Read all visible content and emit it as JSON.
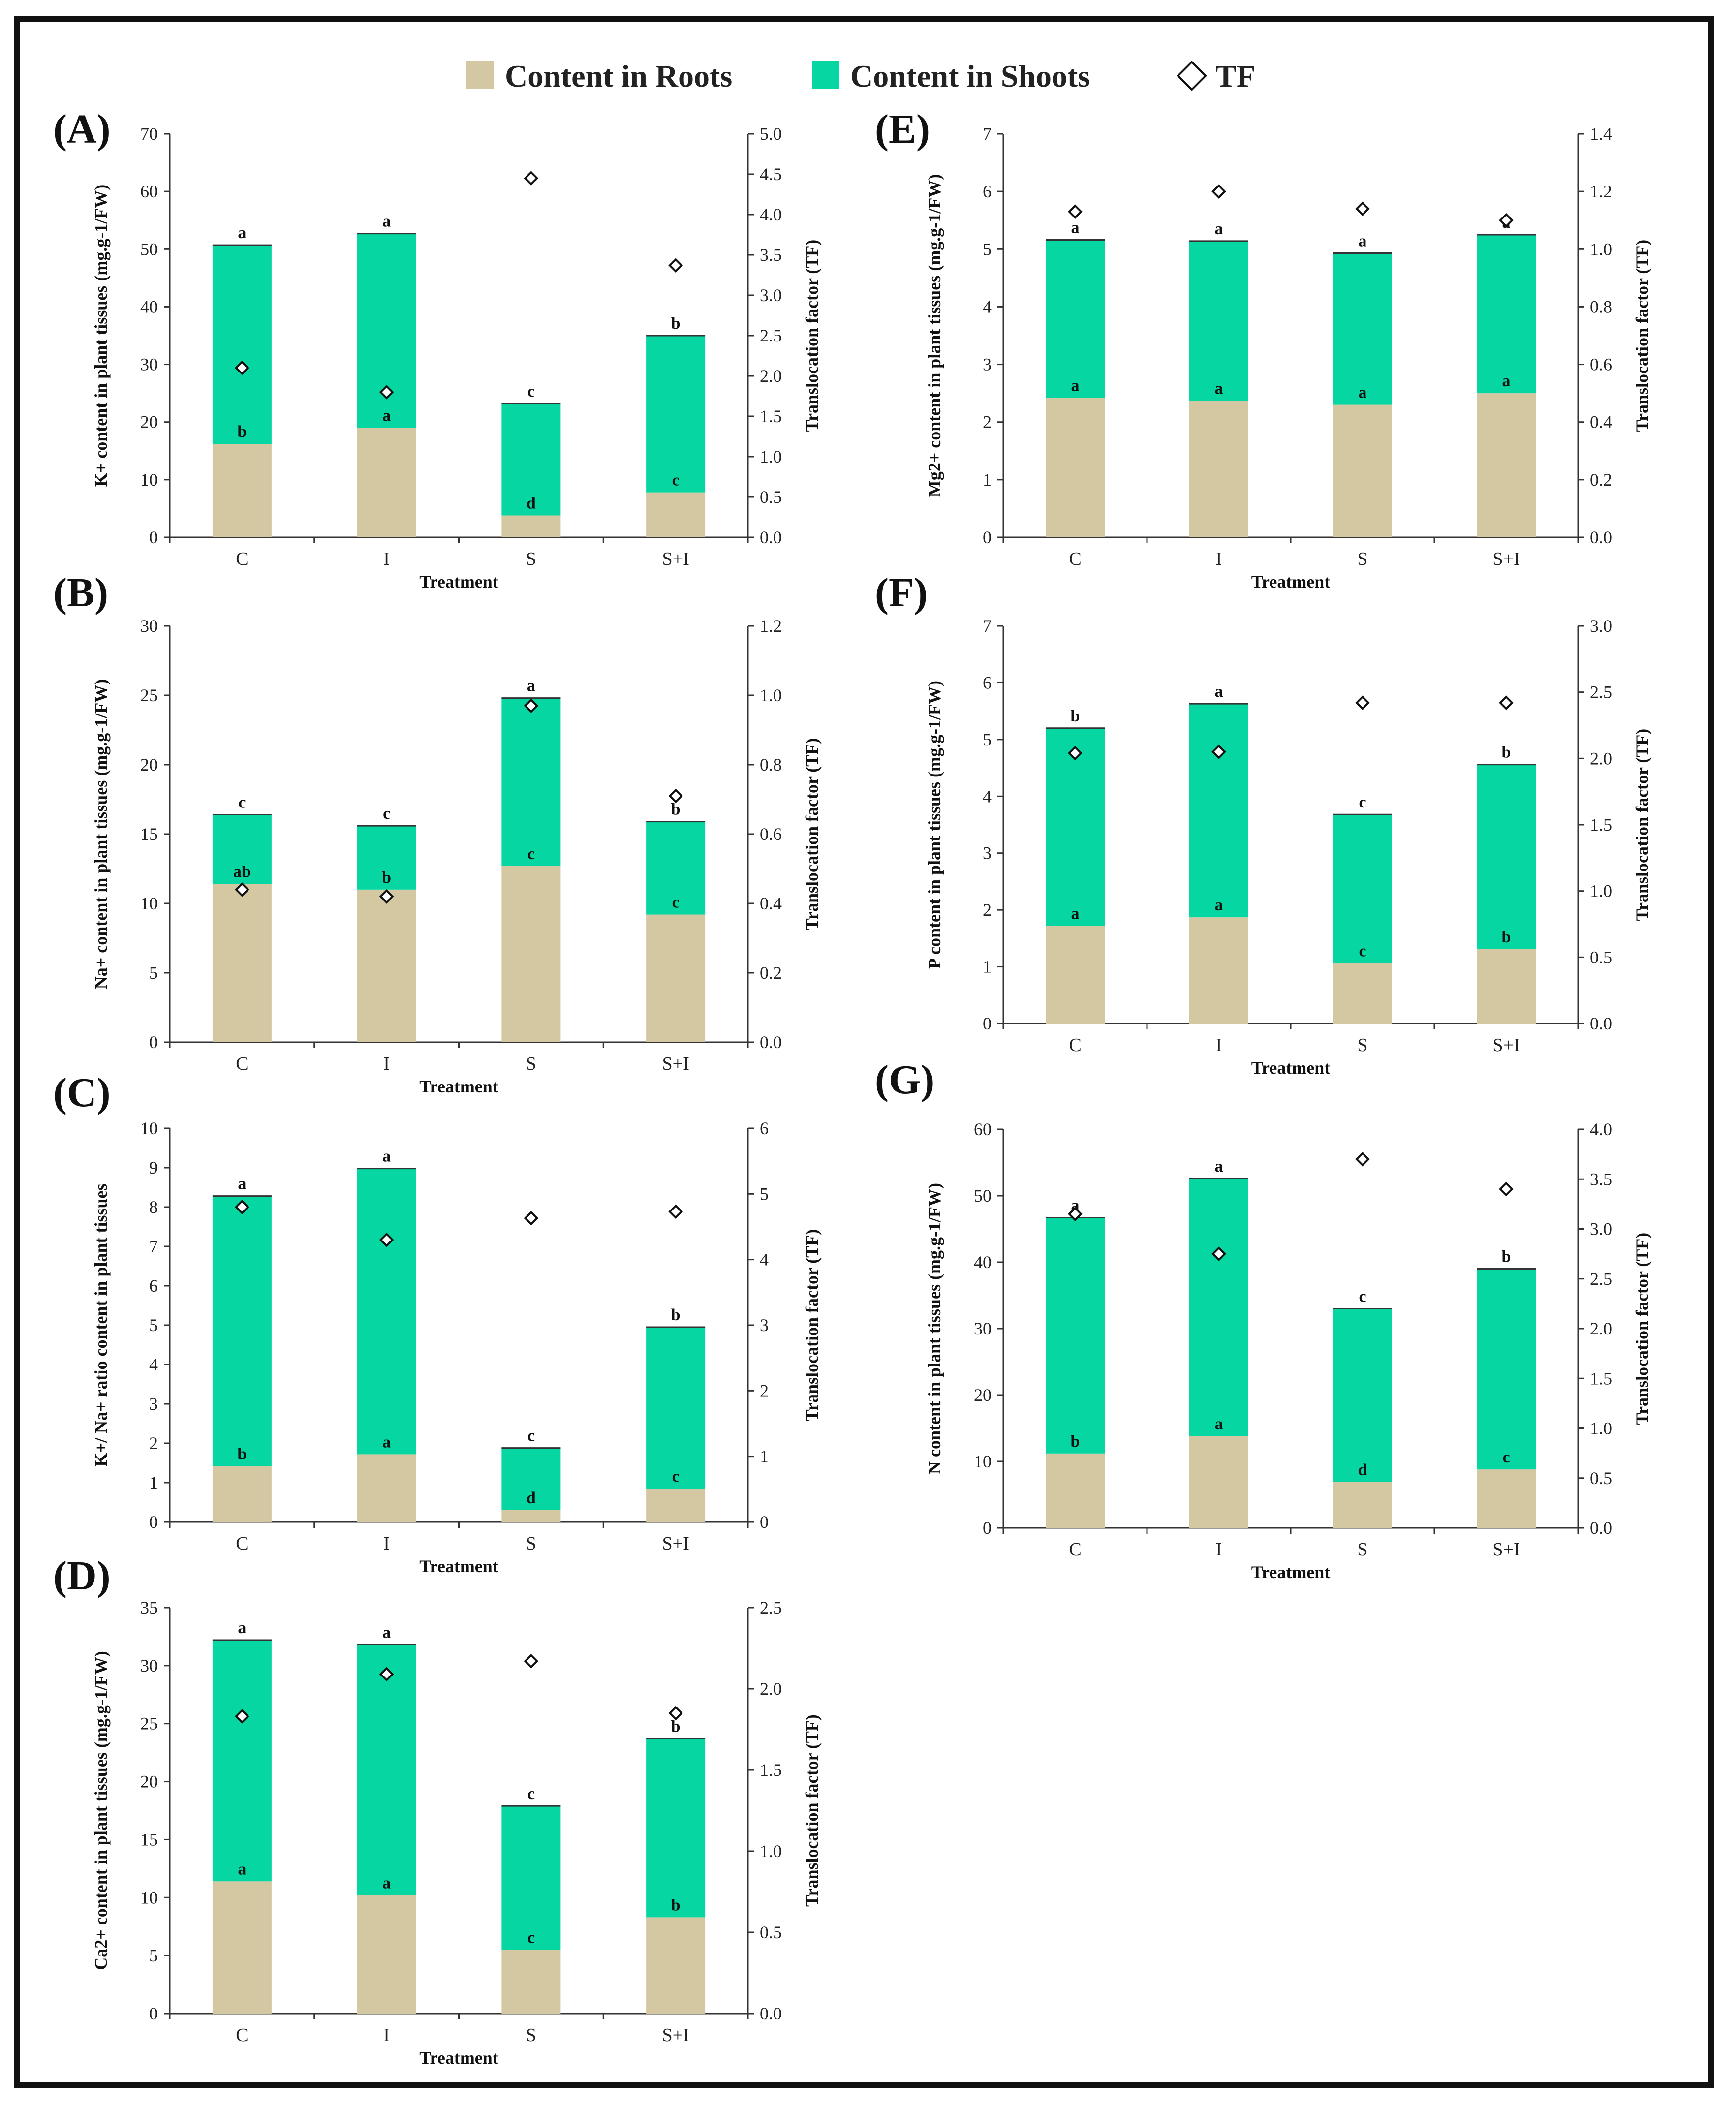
{
  "legend": {
    "roots": "Content in Roots",
    "shoots": "Content in Shoots",
    "tf": "TF"
  },
  "colors": {
    "roots": "#d3c8a2",
    "shoots": "#05d6a2",
    "marker": "#111111"
  },
  "chart_data": [
    {
      "id": "A",
      "label": "(A)",
      "type": "bar",
      "stacked": true,
      "categories": [
        "C",
        "I",
        "S",
        "S+I"
      ],
      "xlabel": "Treatment",
      "ylabel": "K+ content in plant tissues (mg.g-1/FW)",
      "y2label": "Translocation factor (TF)",
      "ylim": [
        0,
        70
      ],
      "yticks": [
        0,
        10,
        20,
        30,
        40,
        50,
        60,
        70
      ],
      "y2lim": [
        0,
        5
      ],
      "y2ticks": [
        "0.0",
        "0.5",
        "1.0",
        "1.5",
        "2.0",
        "2.5",
        "3.0",
        "3.5",
        "4.0",
        "4.5",
        "5.0"
      ],
      "series": [
        {
          "name": "Content in Roots",
          "values": [
            16.2,
            19.0,
            3.8,
            7.8
          ],
          "letters": [
            "b",
            "a",
            "d",
            "c"
          ]
        },
        {
          "name": "Content in Shoots",
          "values": [
            34.5,
            33.7,
            19.4,
            27.2
          ],
          "letters": [
            "a",
            "a",
            "c",
            "b"
          ]
        },
        {
          "name": "TF",
          "axis": "right",
          "values": [
            2.1,
            1.8,
            4.45,
            3.37
          ]
        }
      ]
    },
    {
      "id": "B",
      "label": "(B)",
      "type": "bar",
      "stacked": true,
      "categories": [
        "C",
        "I",
        "S",
        "S+I"
      ],
      "xlabel": "Treatment",
      "ylabel": "Na+ content in plant tissues (mg.g-1/FW)",
      "y2label": "Translocation factor (TF)",
      "ylim": [
        0,
        30
      ],
      "yticks": [
        0,
        5,
        10,
        15,
        20,
        25,
        30
      ],
      "y2lim": [
        0,
        1.2
      ],
      "y2ticks": [
        "0.0",
        "0.2",
        "0.4",
        "0.6",
        "0.8",
        "1.0",
        "1.2"
      ],
      "series": [
        {
          "name": "Content in Roots",
          "values": [
            11.4,
            11.0,
            12.7,
            9.2
          ],
          "letters": [
            "ab",
            "b",
            "c",
            "c"
          ]
        },
        {
          "name": "Content in Shoots",
          "values": [
            5.0,
            4.6,
            12.1,
            6.7
          ],
          "letters": [
            "c",
            "c",
            "a",
            "b"
          ]
        },
        {
          "name": "TF",
          "axis": "right",
          "values": [
            0.44,
            0.42,
            0.97,
            0.71
          ]
        }
      ]
    },
    {
      "id": "C",
      "label": "(C)",
      "type": "bar",
      "stacked": true,
      "categories": [
        "C",
        "I",
        "S",
        "S+I"
      ],
      "xlabel": "Treatment",
      "ylabel": "K+/ Na+ ratio content in plant tissues",
      "y2label": "Translocation factor (TF)",
      "ylim": [
        0,
        10
      ],
      "yticks": [
        0,
        1,
        2,
        3,
        4,
        5,
        6,
        7,
        8,
        9,
        10
      ],
      "y2lim": [
        0,
        6
      ],
      "y2ticks": [
        "0",
        "1",
        "2",
        "3",
        "4",
        "5",
        "6"
      ],
      "series": [
        {
          "name": "Content in Roots",
          "values": [
            1.42,
            1.72,
            0.3,
            0.85
          ],
          "letters": [
            "b",
            "a",
            "d",
            "c"
          ]
        },
        {
          "name": "Content in Shoots",
          "values": [
            6.86,
            7.26,
            1.58,
            4.1
          ],
          "letters": [
            "a",
            "a",
            "c",
            "b"
          ]
        },
        {
          "name": "TF",
          "axis": "right",
          "values": [
            4.8,
            4.3,
            4.63,
            4.73
          ]
        }
      ]
    },
    {
      "id": "D",
      "label": "(D)",
      "type": "bar",
      "stacked": true,
      "categories": [
        "C",
        "I",
        "S",
        "S+I"
      ],
      "xlabel": "Treatment",
      "ylabel": "Ca2+ content in plant tissues (mg.g-1/FW)",
      "y2label": "Translocation factor (TF)",
      "ylim": [
        0,
        35
      ],
      "yticks": [
        0,
        5,
        10,
        15,
        20,
        25,
        30,
        35
      ],
      "y2lim": [
        0,
        2.5
      ],
      "y2ticks": [
        "0.0",
        "0.5",
        "1.0",
        "1.5",
        "2.0",
        "2.5"
      ],
      "series": [
        {
          "name": "Content in Roots",
          "values": [
            11.4,
            10.2,
            5.5,
            8.3
          ],
          "letters": [
            "a",
            "a",
            "c",
            "b"
          ]
        },
        {
          "name": "Content in Shoots",
          "values": [
            20.8,
            21.6,
            12.4,
            15.4
          ],
          "letters": [
            "a",
            "a",
            "c",
            "b"
          ]
        },
        {
          "name": "TF",
          "axis": "right",
          "values": [
            1.83,
            2.09,
            2.17,
            1.85
          ]
        }
      ]
    },
    {
      "id": "E",
      "label": "(E)",
      "type": "bar",
      "stacked": true,
      "categories": [
        "C",
        "I",
        "S",
        "S+I"
      ],
      "xlabel": "Treatment",
      "ylabel": "Mg2+ content in plant tissues (mg.g-1/FW)",
      "y2label": "Translocation factor (TF)",
      "ylim": [
        0,
        7
      ],
      "yticks": [
        0,
        1,
        2,
        3,
        4,
        5,
        6,
        7
      ],
      "y2lim": [
        0,
        1.4
      ],
      "y2ticks": [
        "0.0",
        "0.2",
        "0.4",
        "0.6",
        "0.8",
        "1.0",
        "1.2",
        "1.4"
      ],
      "series": [
        {
          "name": "Content in Roots",
          "values": [
            2.42,
            2.37,
            2.3,
            2.5
          ],
          "letters": [
            "a",
            "a",
            "a",
            "a"
          ]
        },
        {
          "name": "Content in Shoots",
          "values": [
            2.74,
            2.77,
            2.63,
            2.75
          ],
          "letters": [
            "a",
            "a",
            "a",
            "a"
          ]
        },
        {
          "name": "TF",
          "axis": "right",
          "values": [
            1.13,
            1.2,
            1.14,
            1.1
          ]
        }
      ]
    },
    {
      "id": "F",
      "label": "(F)",
      "type": "bar",
      "stacked": true,
      "categories": [
        "C",
        "I",
        "S",
        "S+I"
      ],
      "xlabel": "Treatment",
      "ylabel": "P content in plant tissues (mg.g-1/FW)",
      "y2label": "Translocation factor (TF)",
      "ylim": [
        0,
        7
      ],
      "yticks": [
        0,
        1,
        2,
        3,
        4,
        5,
        6,
        7
      ],
      "y2lim": [
        0,
        3
      ],
      "y2ticks": [
        "0.0",
        "0.5",
        "1.0",
        "1.5",
        "2.0",
        "2.5",
        "3.0"
      ],
      "series": [
        {
          "name": "Content in Roots",
          "values": [
            1.72,
            1.87,
            1.06,
            1.31
          ],
          "letters": [
            "a",
            "a",
            "c",
            "b"
          ]
        },
        {
          "name": "Content in Shoots",
          "values": [
            3.48,
            3.76,
            2.62,
            3.25
          ],
          "letters": [
            "b",
            "a",
            "c",
            "b"
          ]
        },
        {
          "name": "TF",
          "axis": "right",
          "values": [
            2.04,
            2.05,
            2.42,
            2.42
          ]
        }
      ]
    },
    {
      "id": "G",
      "label": "(G)",
      "type": "bar",
      "stacked": true,
      "categories": [
        "C",
        "I",
        "S",
        "S+I"
      ],
      "xlabel": "Treatment",
      "ylabel": "N content in plant tissues (mg.g-1/FW)",
      "y2label": "Translocation factor (TF)",
      "ylim": [
        0,
        60
      ],
      "yticks": [
        0,
        10,
        20,
        30,
        40,
        50,
        60
      ],
      "y2lim": [
        0,
        4
      ],
      "y2ticks": [
        "0.0",
        "0.5",
        "1.0",
        "1.5",
        "2.0",
        "2.5",
        "3.0",
        "3.5",
        "4.0"
      ],
      "series": [
        {
          "name": "Content in Roots",
          "values": [
            11.2,
            13.8,
            6.9,
            8.8
          ],
          "letters": [
            "b",
            "a",
            "d",
            "c"
          ]
        },
        {
          "name": "Content in Shoots",
          "values": [
            35.5,
            38.8,
            26.1,
            30.2
          ],
          "letters": [
            "a",
            "a",
            "c",
            "b"
          ]
        },
        {
          "name": "TF",
          "axis": "right",
          "values": [
            3.15,
            2.75,
            3.7,
            3.4
          ]
        }
      ]
    }
  ]
}
